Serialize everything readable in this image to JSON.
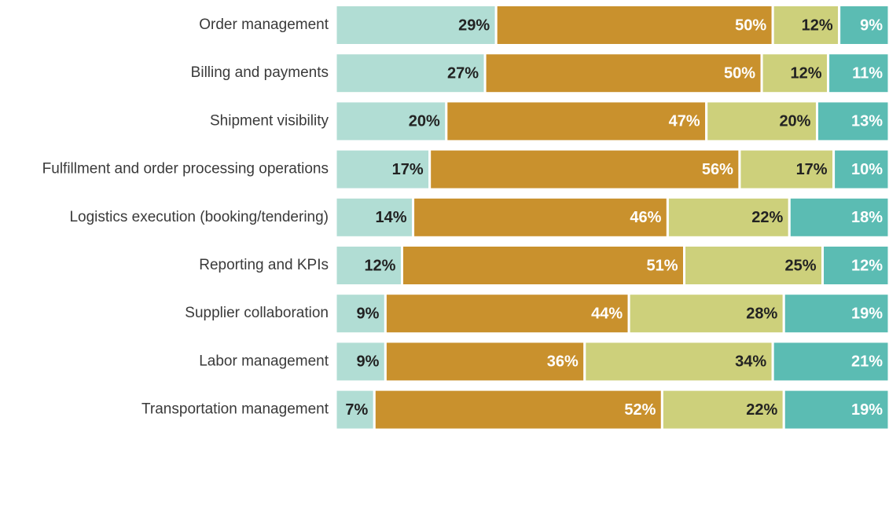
{
  "chart_data": {
    "type": "stacked_bar_horizontal",
    "categories": [
      "Order management",
      "Billing and payments",
      "Shipment visibility",
      "Fulfillment and order processing operations",
      "Logistics execution (booking/tendering)",
      "Reporting and KPIs",
      "Supplier collaboration",
      "Labor management",
      "Transportation management"
    ],
    "xlim": [
      0,
      100
    ],
    "series": [
      {
        "color": "#b1ddd4",
        "values": [
          29,
          27,
          20,
          17,
          14,
          12,
          9,
          9,
          7
        ],
        "value_labels": [
          "29%",
          "27%",
          "20%",
          "17%",
          "14%",
          "12%",
          "9%",
          "9%",
          "7%"
        ]
      },
      {
        "color": "#c9912d",
        "values": [
          50,
          50,
          47,
          56,
          46,
          51,
          44,
          36,
          52
        ],
        "value_labels": [
          "50%",
          "50%",
          "47%",
          "56%",
          "46%",
          "51%",
          "44%",
          "36%",
          "52%"
        ]
      },
      {
        "color": "#cdd07b",
        "values": [
          12,
          12,
          20,
          17,
          22,
          25,
          28,
          34,
          22
        ],
        "value_labels": [
          "12%",
          "12%",
          "20%",
          "17%",
          "22%",
          "25%",
          "28%",
          "34%",
          "22%"
        ]
      },
      {
        "color": "#5bbcb3",
        "values": [
          9,
          11,
          13,
          10,
          18,
          12,
          19,
          21,
          19
        ],
        "value_labels": [
          "9%",
          "11%",
          "13%",
          "10%",
          "18%",
          "12%",
          "19%",
          "21%",
          "19%"
        ]
      }
    ]
  }
}
